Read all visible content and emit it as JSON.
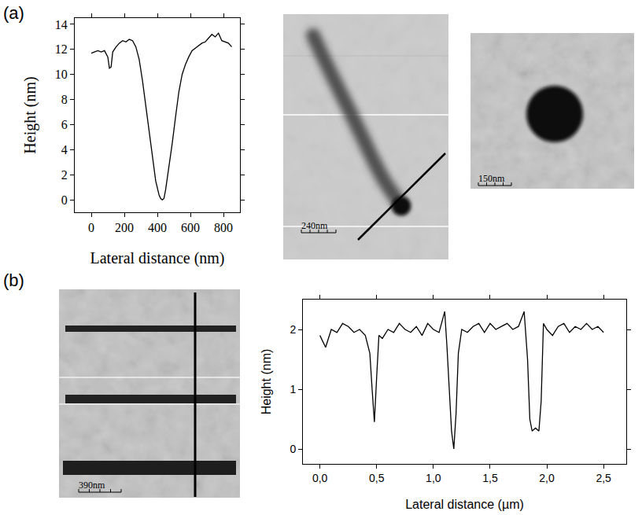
{
  "panel_labels": [
    "(a)",
    "(b)"
  ],
  "images": [
    {
      "scale_bar": "240nm"
    },
    {
      "scale_bar": "150nm"
    },
    {
      "scale_bar": "390nm"
    }
  ],
  "chart_data": [
    {
      "type": "line",
      "xlabel": "Lateral distance (nm)",
      "ylabel": "Height (nm)",
      "color": "#000000",
      "x": [
        0,
        20,
        40,
        60,
        80,
        100,
        110,
        120,
        130,
        150,
        170,
        190,
        210,
        230,
        250,
        270,
        290,
        310,
        330,
        350,
        370,
        390,
        410,
        420,
        430,
        440,
        450,
        470,
        490,
        510,
        530,
        550,
        570,
        590,
        610,
        630,
        650,
        670,
        690,
        710,
        730,
        750,
        770,
        790,
        810,
        830,
        850
      ],
      "values": [
        11.7,
        11.8,
        11.9,
        11.8,
        11.9,
        11.4,
        10.5,
        10.6,
        11.8,
        12.2,
        12.5,
        12.7,
        12.6,
        12.8,
        12.7,
        12.2,
        11.2,
        9.5,
        7.5,
        5.2,
        3.2,
        1.5,
        0.4,
        0.1,
        0.0,
        0.1,
        0.8,
        2.5,
        4.5,
        6.6,
        8.6,
        10.0,
        10.8,
        11.4,
        11.9,
        12.1,
        12.3,
        12.5,
        12.6,
        12.9,
        13.2,
        13.0,
        13.3,
        12.7,
        12.6,
        12.5,
        12.2
      ],
      "xlim": [
        -100,
        900
      ],
      "ylim": [
        -1,
        14.5
      ],
      "xticks": [
        0,
        200,
        400,
        600,
        800
      ],
      "yticks": [
        0,
        2,
        4,
        6,
        8,
        10,
        12,
        14
      ]
    },
    {
      "type": "line",
      "xlabel": "Lateral distance (µm)",
      "ylabel": "Height (nm)",
      "color": "#000000",
      "x": [
        0,
        0.05,
        0.1,
        0.15,
        0.2,
        0.25,
        0.3,
        0.35,
        0.4,
        0.44,
        0.46,
        0.48,
        0.5,
        0.52,
        0.55,
        0.6,
        0.65,
        0.7,
        0.75,
        0.8,
        0.85,
        0.9,
        0.95,
        1.0,
        1.05,
        1.1,
        1.12,
        1.14,
        1.16,
        1.18,
        1.2,
        1.22,
        1.25,
        1.3,
        1.35,
        1.4,
        1.45,
        1.5,
        1.55,
        1.6,
        1.65,
        1.7,
        1.75,
        1.8,
        1.83,
        1.85,
        1.87,
        1.9,
        1.93,
        1.95,
        1.97,
        2.0,
        2.05,
        2.1,
        2.15,
        2.2,
        2.25,
        2.3,
        2.35,
        2.4,
        2.45,
        2.5
      ],
      "values": [
        1.9,
        1.7,
        2.0,
        1.95,
        2.1,
        2.05,
        1.95,
        2.0,
        1.9,
        1.6,
        1.0,
        0.45,
        1.2,
        1.9,
        1.85,
        2.0,
        1.95,
        2.1,
        2.0,
        1.95,
        2.05,
        1.9,
        2.1,
        2.0,
        1.95,
        2.3,
        1.7,
        0.9,
        0.3,
        0.0,
        0.6,
        1.6,
        2.0,
        1.95,
        2.05,
        2.1,
        1.95,
        2.1,
        2.0,
        2.05,
        2.1,
        2.0,
        2.05,
        2.3,
        1.5,
        0.5,
        0.3,
        0.35,
        0.3,
        0.8,
        2.1,
        2.0,
        1.9,
        2.05,
        2.1,
        1.95,
        2.05,
        2.0,
        2.1,
        2.0,
        2.05,
        1.95
      ],
      "xlim": [
        -0.15,
        2.7
      ],
      "ylim": [
        -0.25,
        2.5
      ],
      "xticks": [
        {
          "value": 0,
          "label": "0,0"
        },
        {
          "value": 0.5,
          "label": "0,5"
        },
        {
          "value": 1.0,
          "label": "1,0"
        },
        {
          "value": 1.5,
          "label": "1,5"
        },
        {
          "value": 2.0,
          "label": "2,0"
        },
        {
          "value": 2.5,
          "label": "2,5"
        }
      ],
      "yticks": [
        0,
        1,
        2
      ]
    }
  ]
}
